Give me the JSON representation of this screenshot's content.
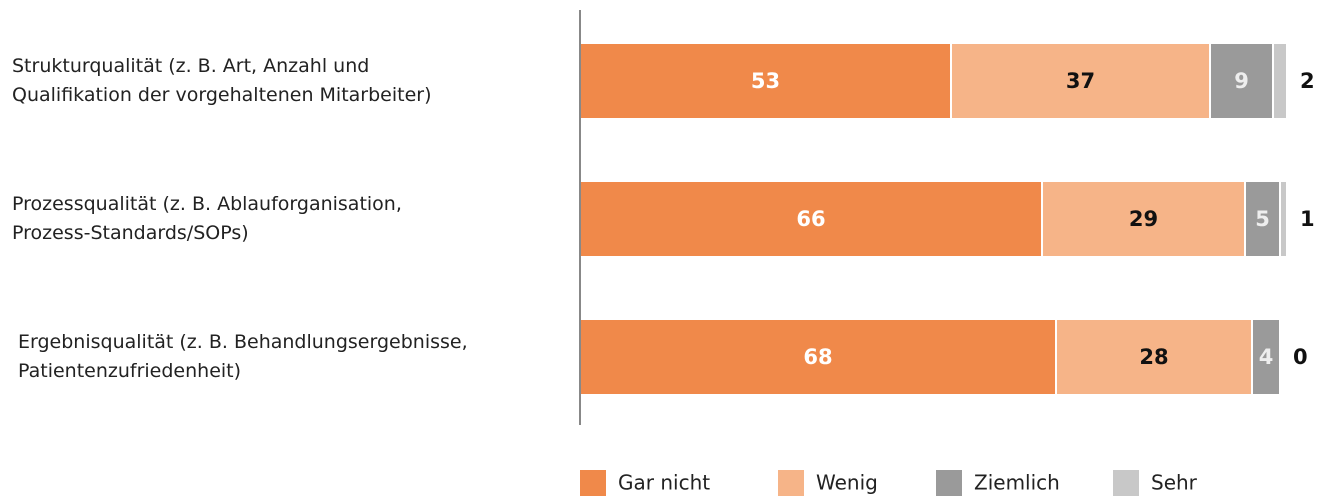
{
  "chart_data": {
    "type": "stacked-bar-horizontal",
    "categories": [
      "Strukturqualität (z. B. Art, Anzahl und\nQualifikation der vorgehaltenen Mitarbeiter)",
      "Prozessqualität (z. B. Ablauforganisation,\nProzess-Standards/SOPs)",
      "Ergebnisqualität (z. B. Behandlungsergebnisse,\nPatientenzufriedenheit)"
    ],
    "series": [
      {
        "name": "Gar nicht",
        "color": "#f0894a",
        "values": [
          53,
          66,
          68
        ]
      },
      {
        "name": "Wenig",
        "color": "#f6b488",
        "values": [
          37,
          29,
          28
        ]
      },
      {
        "name": "Ziemlich",
        "color": "#9a9a9a",
        "values": [
          9,
          5,
          4
        ]
      },
      {
        "name": "Sehr",
        "color": "#c8c8c8",
        "values": [
          2,
          1,
          0
        ]
      }
    ],
    "legend": "bottom"
  }
}
